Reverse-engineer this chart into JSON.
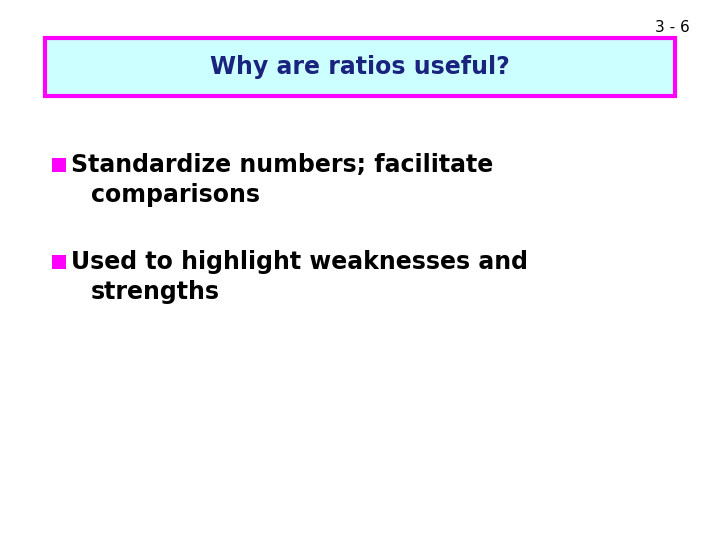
{
  "slide_number": "3 - 6",
  "title": "Why are ratios useful?",
  "title_bg_color": "#ccffff",
  "title_border_color": "#ff00ff",
  "title_text_color": "#1a237e",
  "bullet_square_color": "#ff00ff",
  "bullet1_line1": "Standardize numbers; facilitate",
  "bullet1_line2": "comparisons",
  "bullet2_line1": "Used to highlight weaknesses and",
  "bullet2_line2": "strengths",
  "bullet_text_color": "#000000",
  "slide_num_color": "#000000",
  "background_color": "#ffffff",
  "title_fontsize": 17,
  "bullet_fontsize": 17,
  "slide_num_fontsize": 11
}
